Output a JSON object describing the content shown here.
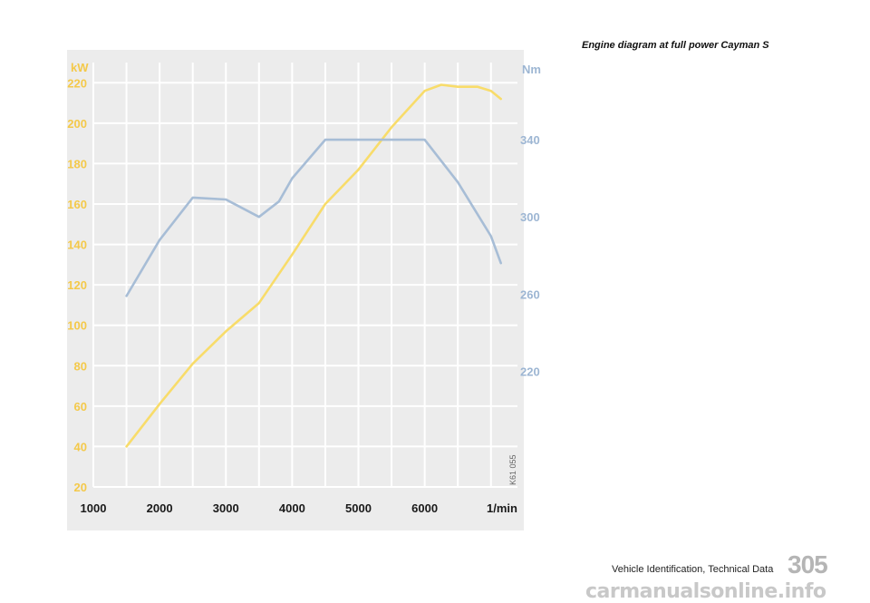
{
  "caption": "Engine diagram at full power Cayman S",
  "chart_data": {
    "type": "line",
    "title": "",
    "x_unit_label": "1/min",
    "x_ticks": [
      1000,
      2000,
      3000,
      4000,
      5000,
      6000
    ],
    "xlim": [
      1000,
      7400
    ],
    "y_left_label": "kW",
    "y_left_ticks": [
      20,
      40,
      60,
      80,
      100,
      120,
      140,
      160,
      180,
      200,
      220
    ],
    "y_left_lim": [
      20,
      230
    ],
    "y_right_label": "Nm",
    "y_right_ticks": [
      220,
      260,
      300,
      340
    ],
    "y_right_lim": [
      160,
      380
    ],
    "grid": true,
    "series": [
      {
        "axis": "left",
        "color": "#f8dc6a",
        "x": [
          1500,
          2000,
          2500,
          3000,
          3500,
          4000,
          4500,
          5000,
          5500,
          6000,
          6250,
          6500,
          6800,
          7000,
          7150
        ],
        "y": [
          40,
          61,
          81,
          97,
          111,
          135,
          160,
          177,
          198,
          216,
          219,
          218,
          218,
          216,
          212
        ]
      },
      {
        "axis": "right",
        "color": "#a7bdd6",
        "x": [
          1500,
          2000,
          2500,
          3000,
          3500,
          3800,
          4000,
          4500,
          5000,
          5500,
          6000,
          6500,
          7000,
          7150
        ],
        "y": [
          259,
          288,
          310,
          309,
          300,
          308,
          320,
          340,
          340,
          340,
          340,
          318,
          290,
          276
        ]
      }
    ],
    "annotation": "K61 055"
  },
  "footer": {
    "section": "Vehicle Identification, Technical Data",
    "page_number": "305"
  },
  "watermark": "carmanualsonline.info",
  "colors": {
    "panel_bg": "#ececec",
    "grid": "#ffffff",
    "left_axis": "#f4c94a",
    "right_axis": "#9db6d3",
    "x_axis": "#1a1a1a"
  }
}
